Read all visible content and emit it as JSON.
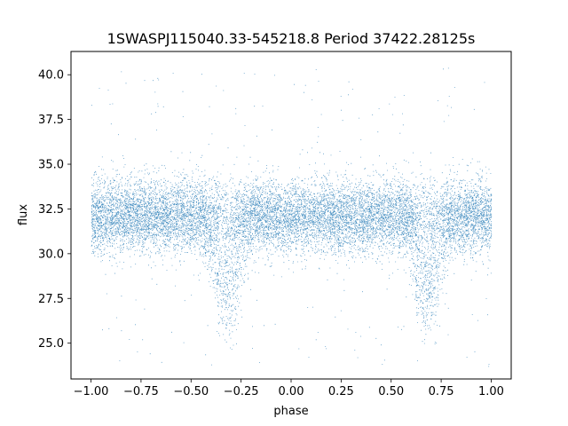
{
  "chart_data": {
    "type": "scatter",
    "title": "1SWASPJ115040.33-545218.8 Period 37422.28125s",
    "xlabel": "phase",
    "ylabel": "flux",
    "xlim": [
      -1.1,
      1.1
    ],
    "ylim": [
      23.0,
      41.3
    ],
    "xticks": [
      -1.0,
      -0.75,
      -0.5,
      -0.25,
      0.0,
      0.25,
      0.5,
      0.75,
      1.0
    ],
    "xtick_labels": [
      "−1.00",
      "−0.75",
      "−0.50",
      "−0.25",
      "0.00",
      "0.25",
      "0.50",
      "0.75",
      "1.00"
    ],
    "yticks": [
      25.0,
      27.5,
      30.0,
      32.5,
      35.0,
      37.5,
      40.0
    ],
    "ytick_labels": [
      "25.0",
      "27.5",
      "30.0",
      "32.5",
      "35.0",
      "37.5",
      "40.0"
    ],
    "grid": false,
    "legend": "none",
    "point_color": "#1f77b4",
    "series": [
      {
        "phase_range": [
          -1.0,
          1.0
        ],
        "flux_baseline": 32.1,
        "flux_scatter": 1.0,
        "dip_centers": [
          -0.32,
          0.68
        ],
        "dip_min_flux": 26.8,
        "outlier_flux_range": [
          23.6,
          40.4
        ],
        "approx_point_count": 14000
      }
    ]
  }
}
